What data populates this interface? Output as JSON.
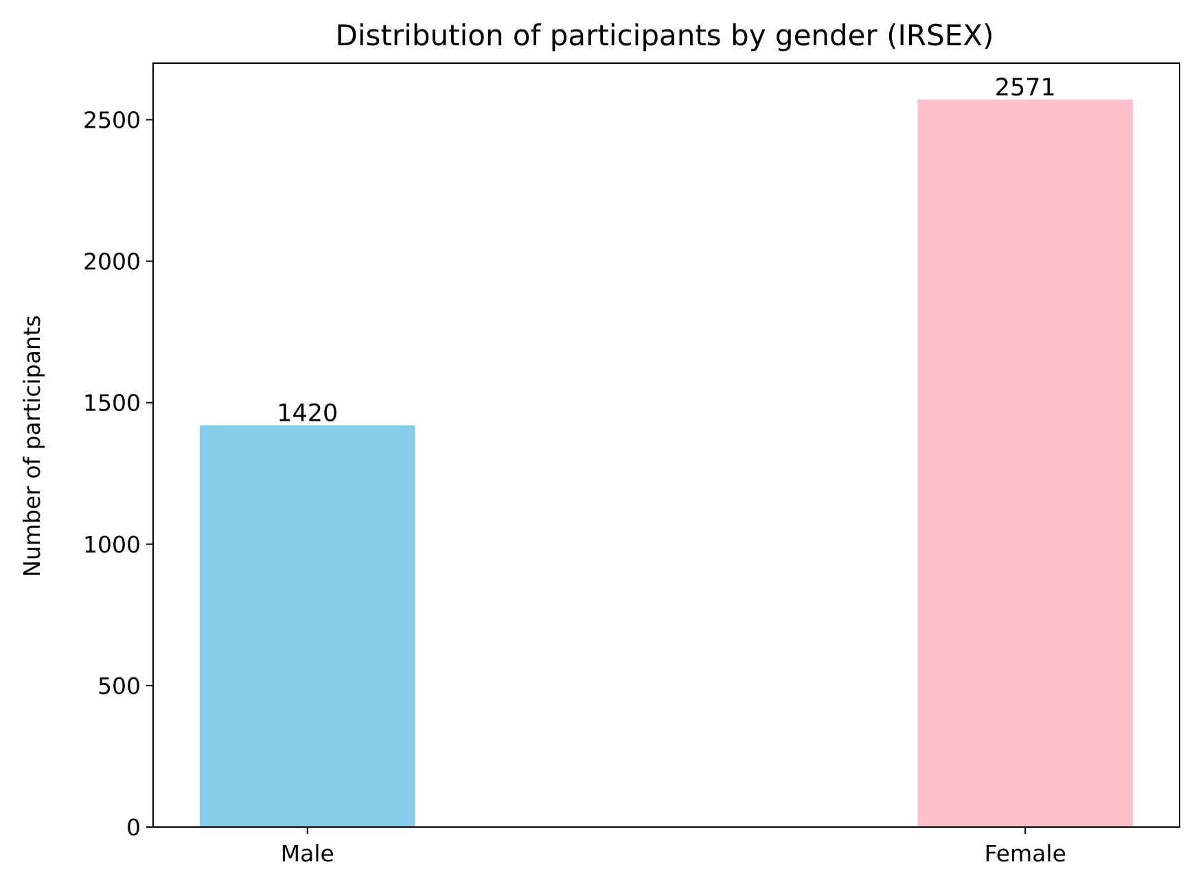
{
  "chart_data": {
    "type": "bar",
    "title": "Distribution of participants by gender (IRSEX)",
    "xlabel": "",
    "ylabel": "Number of participants",
    "categories": [
      "Male",
      "Female"
    ],
    "values": [
      1420,
      2571
    ],
    "data_labels": [
      "1420",
      "2571"
    ],
    "colors": [
      "#87CEEB",
      "#FFC0CB"
    ],
    "ylim": [
      0,
      2700
    ],
    "yticks": [
      0,
      500,
      1000,
      1500,
      2000,
      2500
    ],
    "ytick_labels": [
      "0",
      "500",
      "1000",
      "1500",
      "2000",
      "2500"
    ],
    "grid": false,
    "legend": "none"
  }
}
